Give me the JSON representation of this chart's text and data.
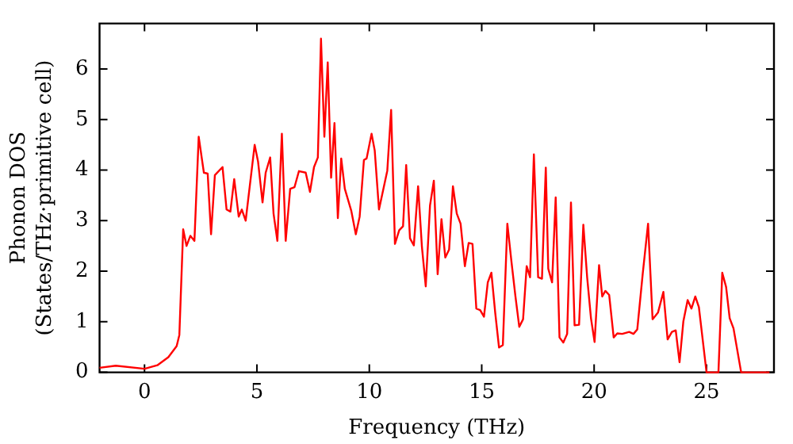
{
  "chart_data": {
    "type": "line",
    "xlabel": "Frequency (THz)",
    "ylabel": "Phonon DOS\n(States/THz·primitive cell)",
    "xlim": [
      -2,
      28
    ],
    "xticks": [
      0,
      5,
      10,
      15,
      20,
      25
    ],
    "ylim": [
      0,
      6.9
    ],
    "yticks": [
      0,
      1,
      2,
      3,
      4,
      5,
      6
    ],
    "grid": false,
    "legend": false,
    "marker": "none",
    "line_style": "solid",
    "series": [
      {
        "color": "#ff0000",
        "x": [
          -2.0,
          -1.28,
          0,
          0.57,
          1.06,
          1.43,
          1.55,
          1.72,
          1.87,
          2.04,
          2.22,
          2.41,
          2.64,
          2.81,
          2.96,
          3.13,
          3.47,
          3.65,
          3.82,
          3.99,
          4.19,
          4.33,
          4.5,
          4.9,
          5.05,
          5.25,
          5.39,
          5.59,
          5.74,
          5.91,
          6.11,
          6.28,
          6.48,
          6.67,
          6.87,
          7.17,
          7.36,
          7.54,
          7.71,
          7.85,
          8.0,
          8.15,
          8.3,
          8.45,
          8.6,
          8.75,
          8.91,
          9.2,
          9.4,
          9.57,
          9.76,
          9.88,
          10.1,
          10.24,
          10.43,
          10.8,
          10.97,
          11.14,
          11.33,
          11.5,
          11.64,
          11.81,
          11.98,
          12.17,
          12.34,
          12.51,
          12.7,
          12.87,
          13.04,
          13.21,
          13.38,
          13.55,
          13.72,
          13.89,
          14.06,
          14.25,
          14.42,
          14.59,
          14.76,
          14.93,
          15.1,
          15.27,
          15.43,
          15.6,
          15.77,
          15.94,
          16.14,
          16.33,
          16.5,
          16.67,
          16.84,
          17.0,
          17.15,
          17.32,
          17.51,
          17.68,
          17.85,
          17.96,
          18.13,
          18.29,
          18.46,
          18.63,
          18.8,
          18.97,
          19.13,
          19.33,
          19.52,
          19.69,
          19.86,
          20.02,
          20.22,
          20.36,
          20.5,
          20.67,
          20.87,
          21.03,
          21.25,
          21.56,
          21.75,
          21.92,
          22.16,
          22.4,
          22.6,
          22.84,
          23.08,
          23.27,
          23.46,
          23.63,
          23.8,
          23.97,
          24.16,
          24.33,
          24.5,
          24.66,
          25.0,
          25.53,
          25.7,
          25.87,
          26.03,
          26.2,
          26.54,
          27.8
        ],
        "values": [
          0.09,
          0.13,
          0.07,
          0.14,
          0.3,
          0.52,
          0.74,
          2.83,
          2.5,
          2.7,
          2.6,
          4.66,
          3.95,
          3.93,
          2.73,
          3.9,
          4.06,
          3.22,
          3.18,
          3.82,
          3.08,
          3.22,
          3.0,
          4.5,
          4.17,
          3.36,
          3.95,
          4.25,
          3.14,
          2.6,
          4.72,
          2.6,
          3.63,
          3.66,
          3.98,
          3.95,
          3.57,
          4.06,
          4.25,
          6.6,
          4.66,
          6.13,
          3.85,
          4.93,
          3.05,
          4.23,
          3.63,
          3.19,
          2.73,
          3.08,
          4.2,
          4.23,
          4.72,
          4.39,
          3.22,
          3.99,
          5.19,
          2.54,
          2.81,
          2.89,
          4.1,
          2.65,
          2.51,
          3.68,
          2.48,
          1.7,
          3.3,
          3.79,
          1.94,
          3.03,
          2.27,
          2.43,
          3.68,
          3.14,
          2.94,
          2.1,
          2.56,
          2.54,
          1.26,
          1.23,
          1.1,
          1.78,
          1.97,
          1.18,
          0.49,
          0.54,
          2.94,
          2.16,
          1.5,
          0.9,
          1.05,
          2.1,
          1.88,
          4.31,
          1.88,
          1.85,
          4.05,
          2.05,
          1.78,
          3.46,
          0.69,
          0.59,
          0.76,
          3.36,
          0.93,
          0.94,
          2.92,
          1.88,
          1.07,
          0.6,
          2.12,
          1.5,
          1.61,
          1.53,
          0.69,
          0.77,
          0.76,
          0.8,
          0.76,
          0.85,
          1.94,
          2.94,
          1.05,
          1.18,
          1.59,
          0.65,
          0.8,
          0.83,
          0.2,
          1.01,
          1.43,
          1.26,
          1.5,
          1.29,
          0,
          0,
          1.97,
          1.69,
          1.07,
          0.87,
          0,
          0
        ]
      }
    ]
  }
}
